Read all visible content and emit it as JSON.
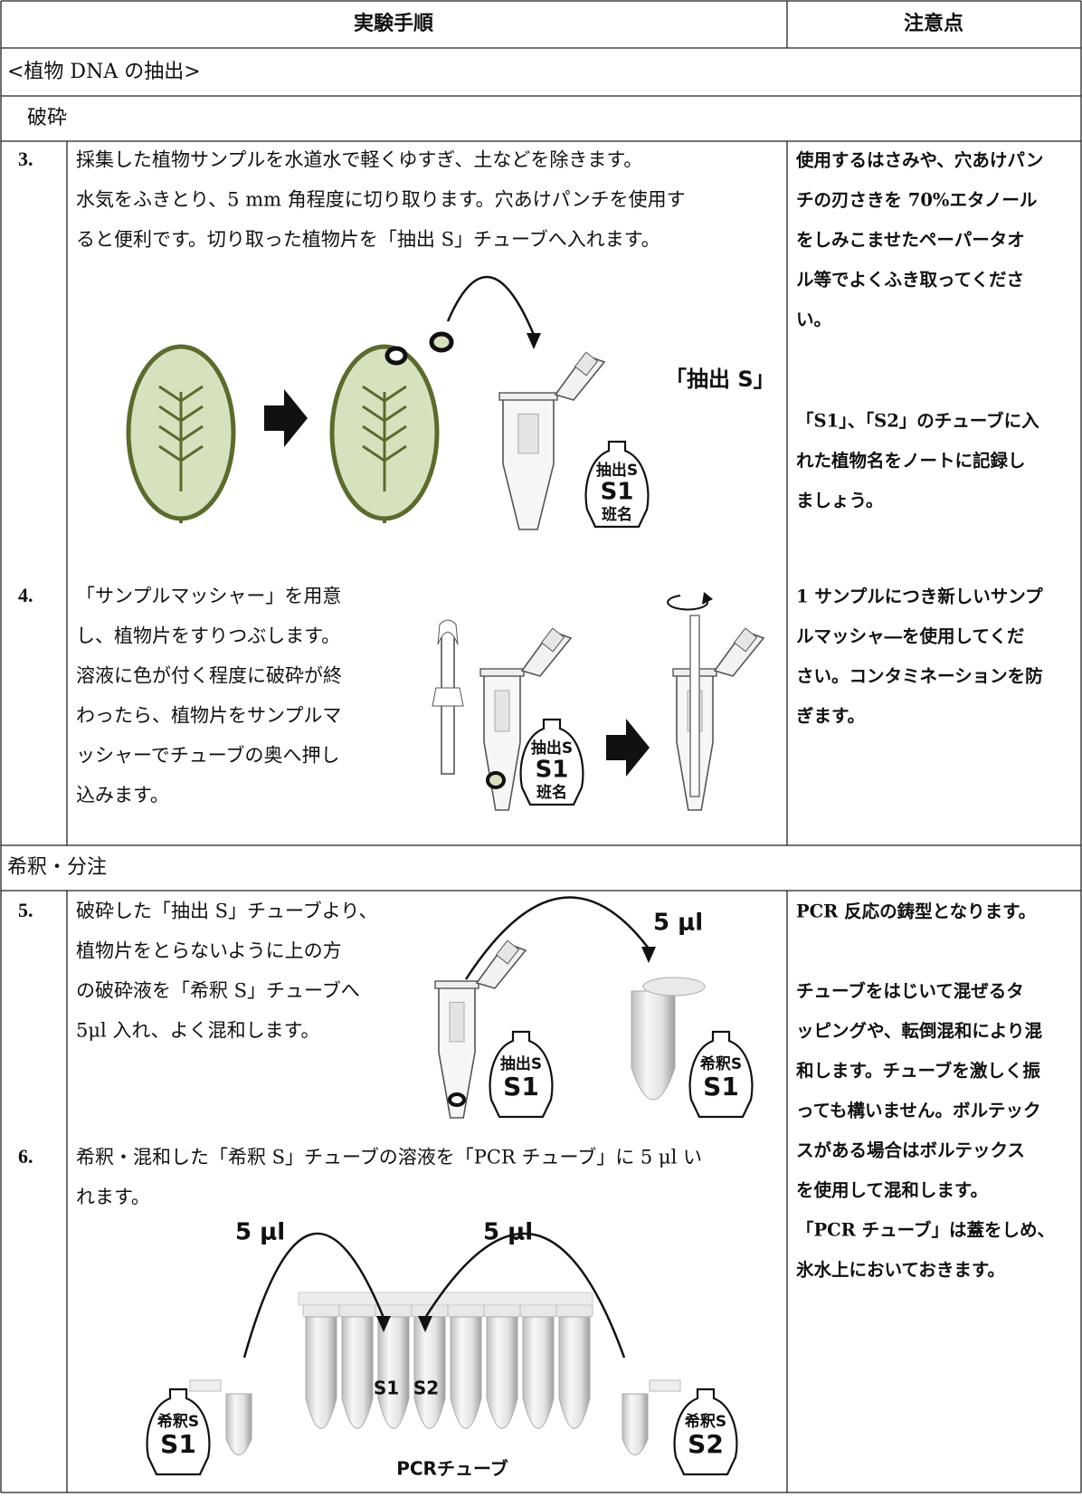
{
  "header": {
    "procedure": "実験手順",
    "notes": "注意点"
  },
  "section_title": "<植物 DNA の抽出>",
  "subsections": [
    "破砕",
    "希釈・分注"
  ],
  "steps": [
    {
      "number": "3.",
      "lines": [
        "採集した植物サンプルを水道水で軽くゆすぎ、土などを除きます。",
        "水気をふきとり、5 mm 角程度に切り取ります。穴あけパンチを使用す",
        "ると便利です。切り取った植物片を「抽出 S」チューブへ入れます。"
      ],
      "notes": [
        [
          "使用するはさみや、穴あけパン",
          "チの刃さきを 70%エタノール",
          "をしみこませたペーパータオ",
          "ル等でよくふき取ってくださ",
          "い。"
        ],
        [
          "「S1」、「S2」のチューブに入",
          "れた植物名をノートに記録し",
          "ましょう。"
        ]
      ],
      "figure": {
        "tube_label": "「抽出 S」",
        "bottle": [
          "抽出S",
          "S1",
          "班名"
        ]
      }
    },
    {
      "number": "4.",
      "lines": [
        "「サンプルマッシャー」を用意",
        "し、植物片をすりつぶします。",
        "溶液に色が付く程度に破砕が終",
        "わったら、植物片をサンプルマ",
        "ッシャーでチューブの奥へ押し",
        "込みます。"
      ],
      "notes": [
        [
          "1 サンプルにつき新しいサンプ",
          "ルマッシャ―を使用してくだ",
          "さい。コンタミネーションを防",
          "ぎます。"
        ]
      ],
      "figure": {
        "bottle": [
          "抽出S",
          "S1",
          "班名"
        ]
      }
    },
    {
      "number": "5.",
      "lines": [
        "破砕した「抽出 S」チューブより、",
        "植物片をとらないように上の方",
        "の破砕液を「希釈 S」チューブへ",
        "5μl 入れ、よく混和します。"
      ],
      "notes": [
        [
          "PCR 反応の鋳型となります。"
        ],
        [
          "チューブをはじいて混ぜるタ",
          "ッピングや、転倒混和により混",
          "和します。チューブを激しく振",
          "っても構いません。ボルテック",
          "スがある場合はボルテックス",
          "を使用して混和します。",
          "「PCR チューブ」は蓋をしめ、",
          "氷水上においておきます。"
        ]
      ],
      "figure": {
        "volume": "5 μl",
        "bottles": [
          [
            "抽出S",
            "S1"
          ],
          [
            "希釈S",
            "S1"
          ]
        ]
      }
    },
    {
      "number": "6.",
      "lines": [
        "希釈・混和した「希釈 S」チューブの溶液を「PCR チューブ」に 5 μl い",
        "れます。"
      ],
      "figure": {
        "volumes": [
          "5 μl",
          "5 μl"
        ],
        "tube_labels": [
          "S1",
          "S2"
        ],
        "strip_label": "PCRチューブ",
        "bottles": [
          [
            "希釈S",
            "S1"
          ],
          [
            "希釈S",
            "S2"
          ]
        ]
      }
    }
  ]
}
